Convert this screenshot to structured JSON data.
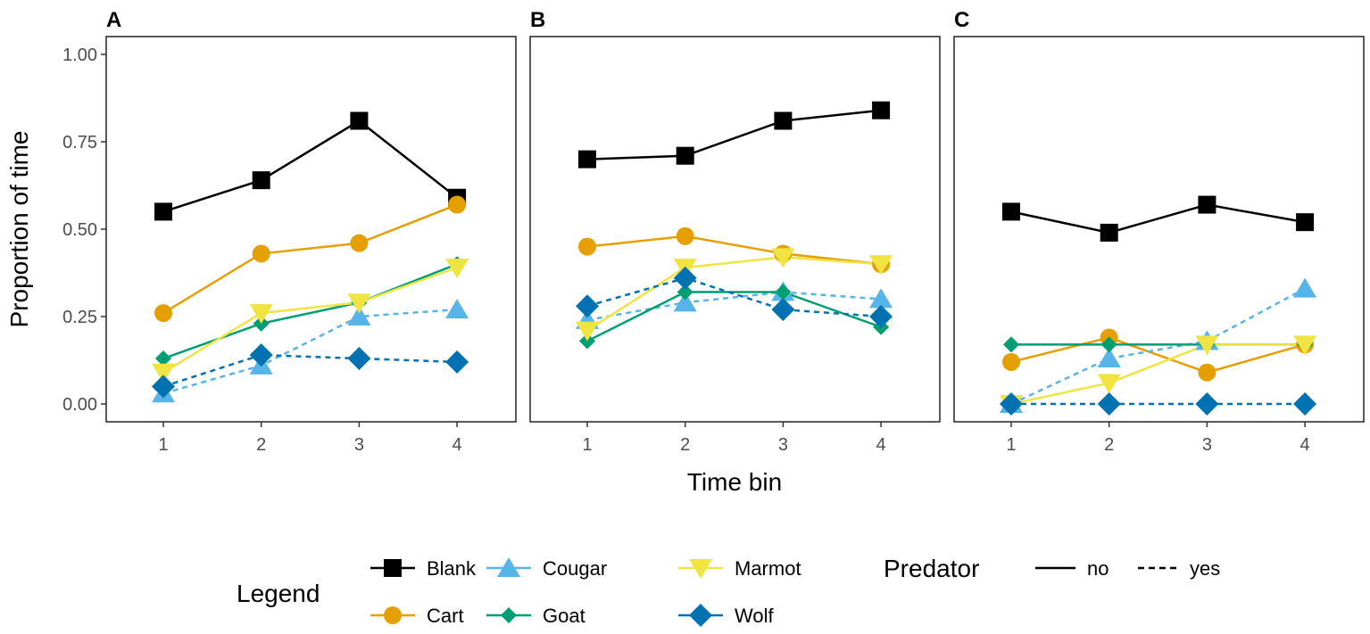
{
  "chart_data": [
    {
      "type": "line",
      "panel_label": "A",
      "x": [
        1,
        2,
        3,
        4
      ],
      "series": [
        {
          "name": "Blank",
          "predator": "no",
          "values": [
            0.55,
            0.64,
            0.81,
            0.59
          ]
        },
        {
          "name": "Cart",
          "predator": "no",
          "values": [
            0.26,
            0.43,
            0.46,
            0.57
          ]
        },
        {
          "name": "Cougar",
          "predator": "yes",
          "values": [
            0.03,
            0.11,
            0.25,
            0.27
          ]
        },
        {
          "name": "Goat",
          "predator": "no",
          "values": [
            0.13,
            0.23,
            0.29,
            0.4
          ]
        },
        {
          "name": "Marmot",
          "predator": "no",
          "values": [
            0.09,
            0.26,
            0.29,
            0.39
          ]
        },
        {
          "name": "Wolf",
          "predator": "yes",
          "values": [
            0.05,
            0.14,
            0.13,
            0.12
          ]
        }
      ]
    },
    {
      "type": "line",
      "panel_label": "B",
      "x": [
        1,
        2,
        3,
        4
      ],
      "series": [
        {
          "name": "Blank",
          "predator": "no",
          "values": [
            0.7,
            0.71,
            0.81,
            0.84
          ]
        },
        {
          "name": "Cart",
          "predator": "no",
          "values": [
            0.45,
            0.48,
            0.43,
            0.4
          ]
        },
        {
          "name": "Cougar",
          "predator": "yes",
          "values": [
            0.24,
            0.29,
            0.32,
            0.3
          ]
        },
        {
          "name": "Goat",
          "predator": "no",
          "values": [
            0.18,
            0.32,
            0.32,
            0.22
          ]
        },
        {
          "name": "Marmot",
          "predator": "no",
          "values": [
            0.21,
            0.39,
            0.42,
            0.4
          ]
        },
        {
          "name": "Wolf",
          "predator": "yes",
          "values": [
            0.28,
            0.36,
            0.27,
            0.25
          ]
        }
      ]
    },
    {
      "type": "line",
      "panel_label": "C",
      "x": [
        1,
        2,
        3,
        4
      ],
      "series": [
        {
          "name": "Blank",
          "predator": "no",
          "values": [
            0.55,
            0.49,
            0.57,
            0.52
          ]
        },
        {
          "name": "Cart",
          "predator": "no",
          "values": [
            0.12,
            0.19,
            0.09,
            0.17
          ]
        },
        {
          "name": "Cougar",
          "predator": "yes",
          "values": [
            0.0,
            0.13,
            0.18,
            0.33
          ]
        },
        {
          "name": "Goat",
          "predator": "no",
          "values": [
            0.17,
            0.17,
            0.17,
            0.17
          ]
        },
        {
          "name": "Marmot",
          "predator": "no",
          "values": [
            0.0,
            0.06,
            0.17,
            0.17
          ]
        },
        {
          "name": "Wolf",
          "predator": "yes",
          "values": [
            0.0,
            0.0,
            0.0,
            0.0
          ]
        }
      ]
    }
  ],
  "axes": {
    "xlabel": "Time bin",
    "ylabel": "Proportion of time",
    "ylim": [
      0,
      1
    ],
    "xlim": [
      1,
      4
    ],
    "yticks": [
      "0.00",
      "0.25",
      "0.50",
      "0.75",
      "1.00"
    ],
    "xticks": [
      "1",
      "2",
      "3",
      "4"
    ],
    "grid": false
  },
  "legend": {
    "title": "Legend",
    "placement": "bottom",
    "items": [
      {
        "label": "Blank",
        "color": "#000000",
        "shape": "square"
      },
      {
        "label": "Cart",
        "color": "#E69F00",
        "shape": "circle"
      },
      {
        "label": "Cougar",
        "color": "#56B4E9",
        "shape": "triangle-up"
      },
      {
        "label": "Goat",
        "color": "#009E73",
        "shape": "diamond-small"
      },
      {
        "label": "Marmot",
        "color": "#F0E442",
        "shape": "triangle-down"
      },
      {
        "label": "Wolf",
        "color": "#0072B2",
        "shape": "diamond"
      }
    ]
  },
  "predator_legend": {
    "title": "Predator",
    "items": [
      {
        "label": "no",
        "linetype": "solid"
      },
      {
        "label": "yes",
        "linetype": "dashed"
      }
    ]
  }
}
